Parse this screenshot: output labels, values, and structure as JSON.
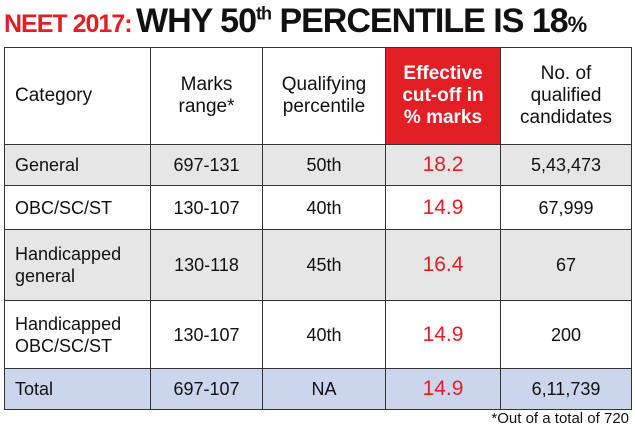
{
  "title": {
    "prefix": "NEET 2017:",
    "parts": [
      "WHY 50",
      "th",
      " PERCENTILE IS 18",
      "%"
    ]
  },
  "table": {
    "header": [
      [
        "Category"
      ],
      [
        "Marks",
        "range*"
      ],
      [
        "Qualifying",
        "percentile"
      ],
      [
        "Effective",
        "cut-off in",
        "% marks"
      ],
      [
        "No. of",
        "qualified",
        "candidates"
      ]
    ],
    "rows": [
      [
        [
          "General"
        ],
        "697-131",
        "50th",
        "18.2",
        "5,43,473"
      ],
      [
        [
          "OBC/SC/ST"
        ],
        "130-107",
        "40th",
        "14.9",
        "67,999"
      ],
      [
        [
          "Handicapped",
          "general"
        ],
        "130-118",
        "45th",
        "16.4",
        "67"
      ],
      [
        [
          "Handicapped",
          "OBC/SC/ST"
        ],
        "130-107",
        "40th",
        "14.9",
        "200"
      ],
      [
        [
          "Total"
        ],
        "697-107",
        "NA",
        "14.9",
        "6,11,739"
      ]
    ]
  },
  "footnote": "*Out of a total of 720"
}
